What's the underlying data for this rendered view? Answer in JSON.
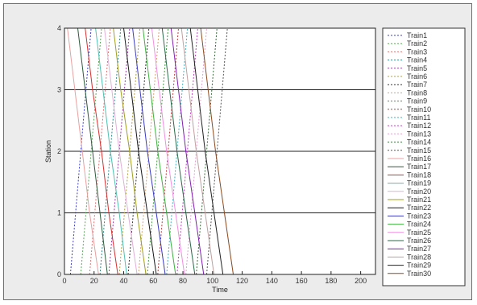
{
  "chart_data": {
    "type": "line",
    "title": "",
    "xlabel": "Time",
    "ylabel": "Station",
    "xlim": [
      0,
      210
    ],
    "ylim": [
      0,
      4
    ],
    "xticks": [
      0,
      20,
      40,
      60,
      80,
      100,
      120,
      140,
      160,
      180,
      200
    ],
    "yticks": [
      0,
      1,
      2,
      3,
      4
    ],
    "grid_y": [
      1,
      2,
      3,
      4
    ],
    "legend_placement": "outside-right",
    "series": [
      {
        "name": "Train1",
        "color": "#3b3bd0",
        "dash": true,
        "points": [
          [
            4,
            0
          ],
          [
            18,
            4
          ]
        ]
      },
      {
        "name": "Train2",
        "color": "#58a858",
        "dash": true,
        "points": [
          [
            11,
            0
          ],
          [
            25,
            4
          ]
        ]
      },
      {
        "name": "Train3",
        "color": "#e07070",
        "dash": true,
        "points": [
          [
            17,
            0
          ],
          [
            31,
            4
          ]
        ]
      },
      {
        "name": "Train4",
        "color": "#2e8a8a",
        "dash": true,
        "points": [
          [
            24,
            0
          ],
          [
            38,
            4
          ]
        ]
      },
      {
        "name": "Train5",
        "color": "#9a3aa8",
        "dash": true,
        "points": [
          [
            30,
            0
          ],
          [
            44,
            4
          ]
        ]
      },
      {
        "name": "Train6",
        "color": "#b0a040",
        "dash": true,
        "points": [
          [
            37,
            0
          ],
          [
            51,
            4
          ]
        ]
      },
      {
        "name": "Train7",
        "color": "#333333",
        "dash": true,
        "points": [
          [
            43,
            0
          ],
          [
            57,
            4
          ]
        ]
      },
      {
        "name": "Train8",
        "color": "#d8a070",
        "dash": true,
        "points": [
          [
            50,
            0
          ],
          [
            64,
            4
          ]
        ]
      },
      {
        "name": "Train9",
        "color": "#3e9a3e",
        "dash": true,
        "points": [
          [
            56,
            0
          ],
          [
            70,
            4
          ]
        ]
      },
      {
        "name": "Train10",
        "color": "#c03a3a",
        "dash": true,
        "points": [
          [
            63,
            0
          ],
          [
            77,
            4
          ]
        ]
      },
      {
        "name": "Train11",
        "color": "#40b0c0",
        "dash": true,
        "points": [
          [
            69,
            0
          ],
          [
            83,
            4
          ]
        ]
      },
      {
        "name": "Train12",
        "color": "#c040c0",
        "dash": true,
        "points": [
          [
            76,
            0
          ],
          [
            90,
            4
          ]
        ]
      },
      {
        "name": "Train13",
        "color": "#e0a0d0",
        "dash": true,
        "points": [
          [
            82,
            0
          ],
          [
            96,
            4
          ]
        ]
      },
      {
        "name": "Train14",
        "color": "#3a6a3a",
        "dash": true,
        "points": [
          [
            89,
            0
          ],
          [
            103,
            4
          ]
        ]
      },
      {
        "name": "Train15",
        "color": "#555555",
        "dash": true,
        "points": [
          [
            96,
            0
          ],
          [
            110,
            4
          ]
        ]
      },
      {
        "name": "Train16",
        "color": "#e8a0a0",
        "dash": false,
        "points": [
          [
            2,
            4
          ],
          [
            7,
            3
          ],
          [
            12,
            2
          ],
          [
            17,
            1
          ],
          [
            23,
            0
          ]
        ]
      },
      {
        "name": "Train17",
        "color": "#2a5a3a",
        "dash": false,
        "points": [
          [
            9,
            4
          ],
          [
            14,
            3
          ],
          [
            19,
            2
          ],
          [
            24,
            1
          ],
          [
            29,
            0
          ]
        ]
      },
      {
        "name": "Train18",
        "color": "#d83030",
        "dash": false,
        "points": [
          [
            14,
            4
          ],
          [
            19,
            3
          ],
          [
            25,
            2
          ],
          [
            30,
            1
          ],
          [
            36,
            0
          ]
        ]
      },
      {
        "name": "Train19",
        "color": "#50c0b0",
        "dash": false,
        "points": [
          [
            21,
            4
          ],
          [
            26,
            3
          ],
          [
            31,
            2
          ],
          [
            37,
            1
          ],
          [
            42,
            0
          ]
        ]
      },
      {
        "name": "Train20",
        "color": "#e0b0d8",
        "dash": false,
        "points": [
          [
            27,
            4
          ],
          [
            32,
            3
          ],
          [
            37,
            2
          ],
          [
            43,
            1
          ],
          [
            49,
            0
          ]
        ]
      },
      {
        "name": "Train21",
        "color": "#a0a020",
        "dash": false,
        "points": [
          [
            33,
            4
          ],
          [
            38,
            3
          ],
          [
            44,
            2
          ],
          [
            49,
            1
          ],
          [
            55,
            0
          ]
        ]
      },
      {
        "name": "Train22",
        "color": "#1a1a1a",
        "dash": false,
        "points": [
          [
            40,
            4
          ],
          [
            45,
            3
          ],
          [
            50,
            2
          ],
          [
            56,
            1
          ],
          [
            62,
            0
          ]
        ]
      },
      {
        "name": "Train23",
        "color": "#3a3ac0",
        "dash": false,
        "points": [
          [
            46,
            4
          ],
          [
            51,
            3
          ],
          [
            56,
            2
          ],
          [
            62,
            1
          ],
          [
            68,
            0
          ]
        ]
      },
      {
        "name": "Train24",
        "color": "#40b040",
        "dash": false,
        "points": [
          [
            53,
            4
          ],
          [
            58,
            3
          ],
          [
            63,
            2
          ],
          [
            69,
            1
          ],
          [
            75,
            0
          ]
        ]
      },
      {
        "name": "Train25",
        "color": "#f090e0",
        "dash": false,
        "points": [
          [
            59,
            4
          ],
          [
            64,
            3
          ],
          [
            69,
            2
          ],
          [
            75,
            1
          ],
          [
            81,
            0
          ]
        ]
      },
      {
        "name": "Train26",
        "color": "#2a6a4a",
        "dash": false,
        "points": [
          [
            66,
            4
          ],
          [
            71,
            3
          ],
          [
            76,
            2
          ],
          [
            82,
            1
          ],
          [
            88,
            0
          ]
        ]
      },
      {
        "name": "Train27",
        "color": "#8020b0",
        "dash": false,
        "points": [
          [
            72,
            4
          ],
          [
            77,
            3
          ],
          [
            82,
            2
          ],
          [
            88,
            1
          ],
          [
            94,
            0
          ]
        ]
      },
      {
        "name": "Train28",
        "color": "#c0a0a0",
        "dash": false,
        "points": [
          [
            79,
            4
          ],
          [
            84,
            3
          ],
          [
            89,
            2
          ],
          [
            95,
            1
          ],
          [
            101,
            0
          ]
        ]
      },
      {
        "name": "Train29",
        "color": "#222222",
        "dash": false,
        "points": [
          [
            85,
            4
          ],
          [
            90,
            3
          ],
          [
            95,
            2
          ],
          [
            101,
            1
          ],
          [
            107,
            0
          ]
        ]
      },
      {
        "name": "Train30",
        "color": "#8a4a20",
        "dash": false,
        "points": [
          [
            92,
            4
          ],
          [
            97,
            3
          ],
          [
            102,
            2
          ],
          [
            108,
            1
          ],
          [
            114,
            0
          ]
        ]
      }
    ]
  }
}
